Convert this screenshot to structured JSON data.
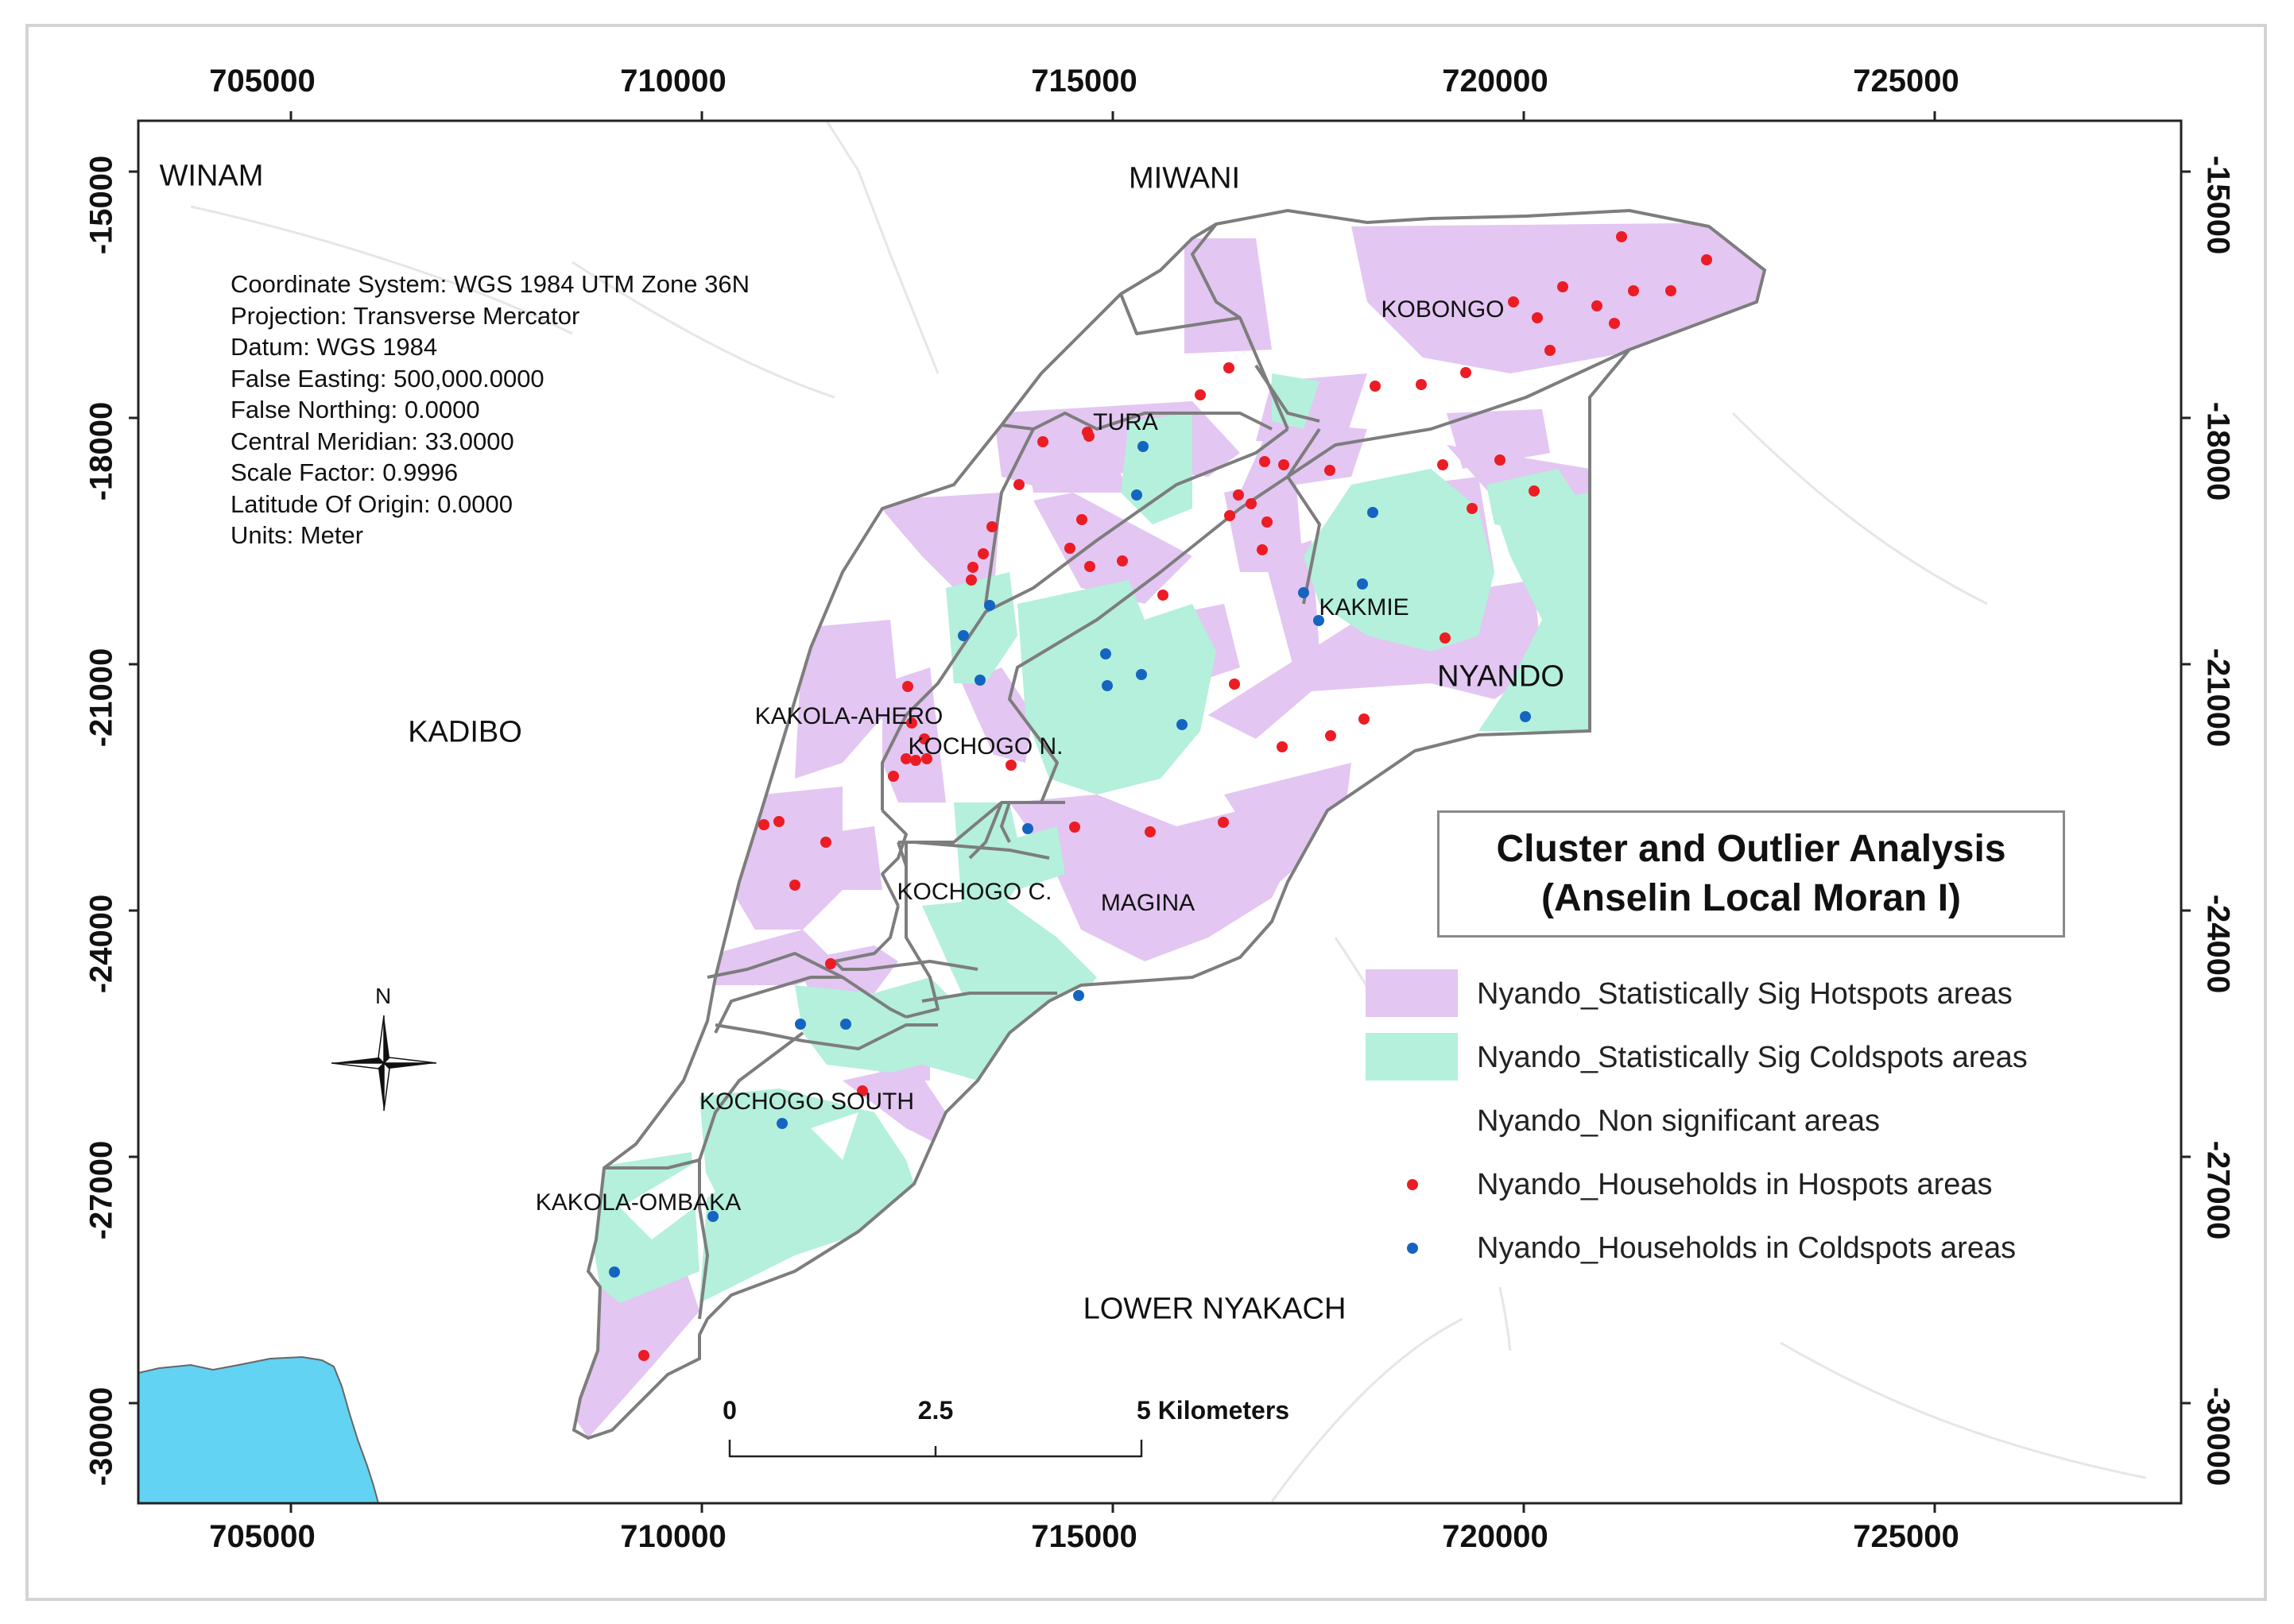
{
  "map": {
    "x_ticks": [
      "705000",
      "710000",
      "715000",
      "720000",
      "725000"
    ],
    "y_ticks": [
      "-15000",
      "-18000",
      "-21000",
      "-24000",
      "-27000",
      "-30000"
    ],
    "regions": {
      "winam": "WINAM",
      "miwani": "MIWANI",
      "kadibo": "KADIBO",
      "nyando": "NYANDO",
      "lower_nyakach": "LOWER NYAKACH",
      "kobongo": "KOBONGO",
      "tura": "TURA",
      "kakmie": "KAKMIE",
      "kakola_ahero": "KAKOLA-AHERO",
      "kochogo_n": "KOCHOGO N.",
      "kochogo_c": "KOCHOGO C.",
      "magina": "MAGINA",
      "kochogo_south": "KOCHOGO SOUTH",
      "kakola_ombaka": "KAKOLA-OMBAKA"
    },
    "metadata": [
      "Coordinate System: WGS 1984 UTM Zone 36N",
      "Projection: Transverse Mercator",
      "Datum: WGS 1984",
      "False Easting: 500,000.0000",
      "False Northing: 0.0000",
      "Central Meridian: 33.0000",
      "Scale Factor: 0.9996",
      "Latitude Of Origin: 0.0000",
      "Units: Meter"
    ],
    "north_label": "N",
    "scalebar": {
      "zero": "0",
      "mid": "2.5",
      "end": "5 Kilometers"
    }
  },
  "title": {
    "line1": "Cluster and Outlier Analysis",
    "line2": "(Anselin Local Moran I)"
  },
  "legend": [
    {
      "label": "Nyando_Statistically Sig Hotspots areas",
      "kind": "fill",
      "color": "#e3c6f2"
    },
    {
      "label": "Nyando_Statistically Sig Coldspots areas",
      "kind": "fill",
      "color": "#b4f0dc"
    },
    {
      "label": "Nyando_Non significant areas",
      "kind": "fill",
      "color": "#ffffff"
    },
    {
      "label": "Nyando_Households in Hospots areas",
      "kind": "dot",
      "color": "#ec1c24"
    },
    {
      "label": "Nyando_Households in Coldspots areas",
      "kind": "dot",
      "color": "#1565c0"
    }
  ],
  "colors": {
    "hotspot": "#e3c6f2",
    "coldspot": "#b4f0dc",
    "water": "#62d3f2",
    "boundary": "#7d7d7d",
    "hot_household": "#ec1c24",
    "cold_household": "#1565c0"
  }
}
